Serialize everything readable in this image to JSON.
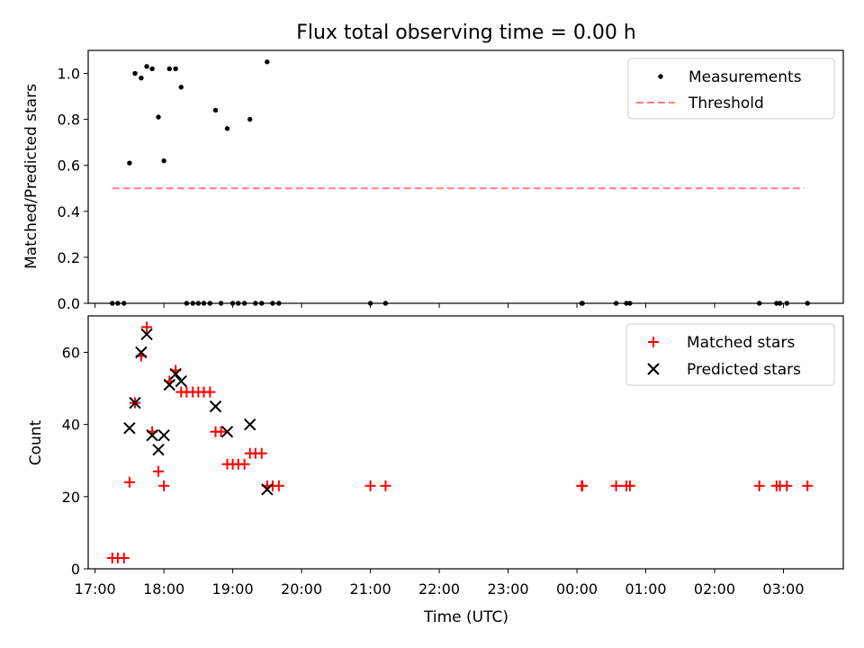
{
  "title": "Flux total observing time = 0.00 h",
  "colors": {
    "measure": "#000000",
    "threshold": "#ff7f7f",
    "matched": "#ff0000",
    "predicted": "#000000"
  },
  "chart_data": [
    {
      "type": "scatter",
      "title": "Flux total observing time = 0.00 h",
      "ylabel": "Matched/Predicted stars",
      "xlabel": "",
      "xlim": [
        16.9,
        27.87
      ],
      "ylim": [
        0,
        1.1
      ],
      "yticks": [
        0.0,
        0.2,
        0.4,
        0.6,
        0.8,
        1.0
      ],
      "ytick_labels": [
        "0.0",
        "0.2",
        "0.4",
        "0.6",
        "0.8",
        "1.0"
      ],
      "legend_position": "top-right",
      "legend": [
        "Measurements",
        "Threshold"
      ],
      "series": [
        {
          "name": "Measurements",
          "marker": "dot",
          "x": [
            17.25,
            17.33,
            17.42,
            17.5,
            17.58,
            17.67,
            17.75,
            17.83,
            17.92,
            18.0,
            18.08,
            18.17,
            18.25,
            18.33,
            18.42,
            18.5,
            18.58,
            18.67,
            18.75,
            18.83,
            18.92,
            19.0,
            19.08,
            19.17,
            19.25,
            19.33,
            19.42,
            19.5,
            19.58,
            19.67,
            21.0,
            21.22,
            24.07,
            24.08,
            24.57,
            24.72,
            24.77,
            26.65,
            26.9,
            26.95,
            27.05,
            27.35
          ],
          "y": [
            0,
            0,
            0,
            0.61,
            1.0,
            0.98,
            1.03,
            1.02,
            0.81,
            0.62,
            1.02,
            1.02,
            0.94,
            0,
            0,
            0,
            0,
            0,
            0.84,
            0,
            0.76,
            0,
            0,
            0,
            0.8,
            0,
            0,
            1.05,
            0,
            0,
            0,
            0,
            0,
            0,
            0,
            0,
            0,
            0,
            0,
            0,
            0,
            0
          ]
        },
        {
          "name": "Threshold",
          "marker": "dashed-line",
          "x": [
            17.25,
            27.3
          ],
          "y": [
            0.5,
            0.5
          ]
        }
      ]
    },
    {
      "type": "scatter",
      "title": "",
      "ylabel": "Count",
      "xlabel": "Time (UTC)",
      "xlim": [
        16.9,
        27.87
      ],
      "ylim": [
        0,
        70.1
      ],
      "yticks": [
        0,
        20,
        40,
        60
      ],
      "ytick_labels": [
        "0",
        "20",
        "40",
        "60"
      ],
      "xticks": [
        17,
        18,
        19,
        20,
        21,
        22,
        23,
        24,
        25,
        26,
        27
      ],
      "xtick_labels": [
        "17:00",
        "18:00",
        "19:00",
        "20:00",
        "21:00",
        "22:00",
        "23:00",
        "00:00",
        "01:00",
        "02:00",
        "03:00"
      ],
      "legend_position": "top-right",
      "legend": [
        "Matched stars",
        "Predicted stars"
      ],
      "series": [
        {
          "name": "Matched stars",
          "marker": "plus",
          "x": [
            17.25,
            17.33,
            17.42,
            17.5,
            17.58,
            17.67,
            17.75,
            17.83,
            17.92,
            18.0,
            18.08,
            18.17,
            18.25,
            18.33,
            18.42,
            18.5,
            18.58,
            18.67,
            18.75,
            18.83,
            18.92,
            19.0,
            19.08,
            19.17,
            19.25,
            19.33,
            19.42,
            19.5,
            19.58,
            19.67,
            21.0,
            21.22,
            24.07,
            24.08,
            24.57,
            24.72,
            24.77,
            26.65,
            26.9,
            26.95,
            27.05,
            27.35
          ],
          "y": [
            3,
            3,
            3,
            24,
            46,
            59,
            67,
            38,
            27,
            23,
            52,
            55,
            49,
            49,
            49,
            49,
            49,
            49,
            38,
            38,
            29,
            29,
            29,
            29,
            32,
            32,
            32,
            23,
            23,
            23,
            23,
            23,
            23,
            23,
            23,
            23,
            23,
            23,
            23,
            23,
            23,
            23
          ]
        },
        {
          "name": "Predicted stars",
          "marker": "x",
          "x": [
            17.5,
            17.58,
            17.67,
            17.75,
            17.83,
            17.92,
            18.0,
            18.08,
            18.17,
            18.25,
            18.75,
            18.92,
            19.25,
            19.5
          ],
          "y": [
            39,
            46,
            60,
            65,
            37,
            33,
            37,
            51,
            54,
            52,
            45,
            38,
            40,
            22
          ]
        }
      ]
    }
  ]
}
